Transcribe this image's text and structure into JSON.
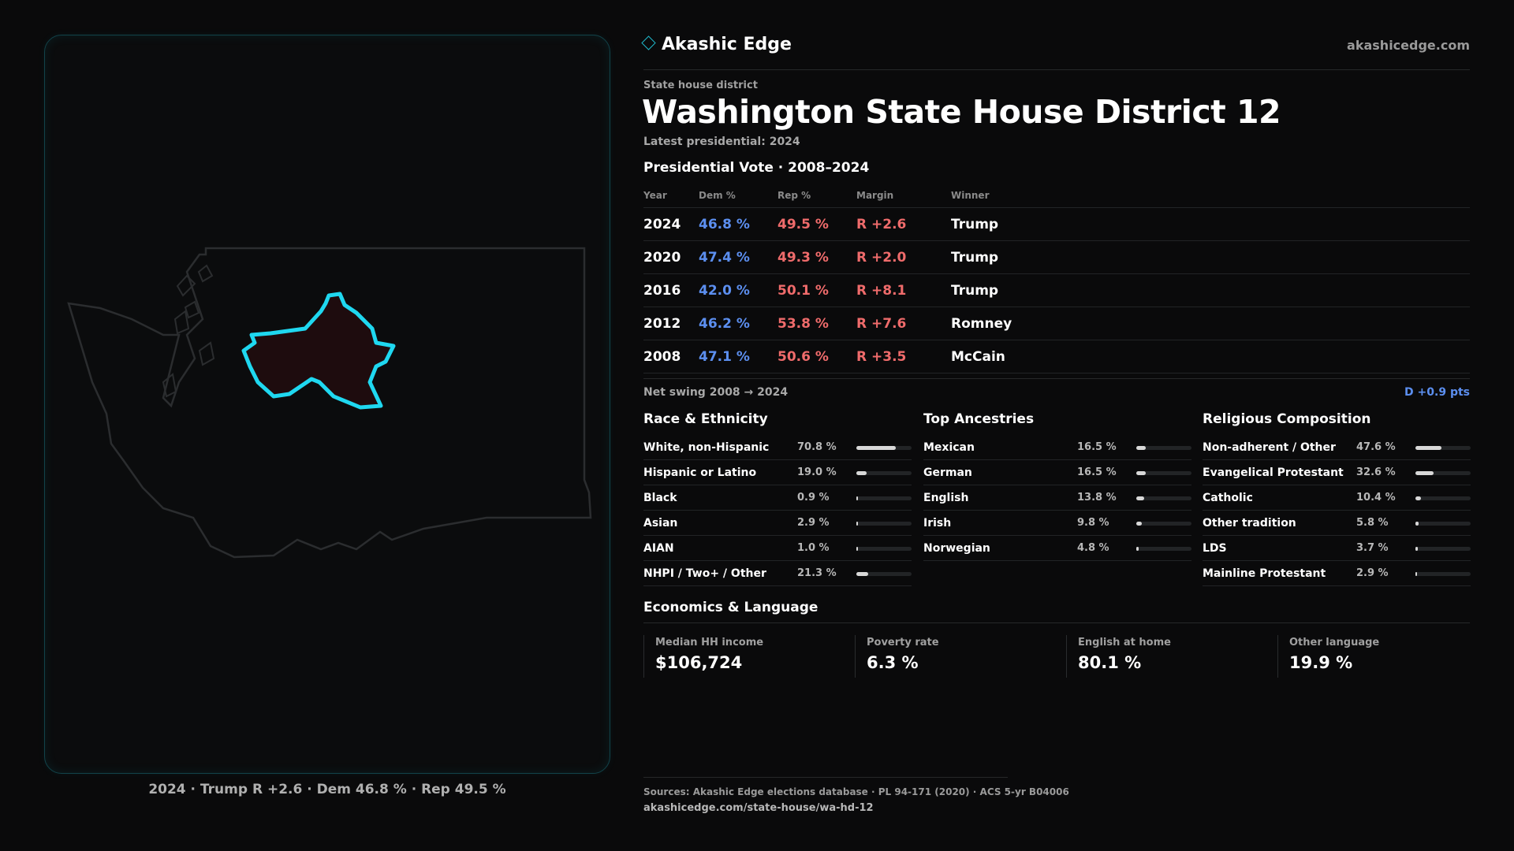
{
  "map": {
    "caption": "2024 · Trump R +2.6 · Dem 46.8 % · Rep 49.5 %"
  },
  "header": {
    "brand": "Akashic Edge",
    "site": "akashicedge.com",
    "eyebrow": "State house district",
    "title": "Washington State House District 12",
    "latest": "Latest presidential: 2024"
  },
  "presidential": {
    "section_title": "Presidential Vote · 2008–2024",
    "columns": [
      "Year",
      "Dem %",
      "Rep %",
      "Margin",
      "Winner"
    ],
    "rows": [
      {
        "year": "2024",
        "dem": "46.8 %",
        "rep": "49.5 %",
        "margin": "R +2.6",
        "winner": "Trump"
      },
      {
        "year": "2020",
        "dem": "47.4 %",
        "rep": "49.3 %",
        "margin": "R +2.0",
        "winner": "Trump"
      },
      {
        "year": "2016",
        "dem": "42.0 %",
        "rep": "50.1 %",
        "margin": "R +8.1",
        "winner": "Trump"
      },
      {
        "year": "2012",
        "dem": "46.2 %",
        "rep": "53.8 %",
        "margin": "R +7.6",
        "winner": "Romney"
      },
      {
        "year": "2008",
        "dem": "47.1 %",
        "rep": "50.6 %",
        "margin": "R +3.5",
        "winner": "McCain"
      }
    ],
    "swing_label": "Net swing 2008 → 2024",
    "swing_value": "D +0.9 pts"
  },
  "race": {
    "title": "Race & Ethnicity",
    "items": [
      {
        "label": "White, non-Hispanic",
        "pct": "70.8 %",
        "value": 70.8
      },
      {
        "label": "Hispanic or Latino",
        "pct": "19.0 %",
        "value": 19.0
      },
      {
        "label": "Black",
        "pct": "0.9 %",
        "value": 0.9
      },
      {
        "label": "Asian",
        "pct": "2.9 %",
        "value": 2.9
      },
      {
        "label": "AIAN",
        "pct": "1.0 %",
        "value": 1.0
      },
      {
        "label": "NHPI / Two+ / Other",
        "pct": "21.3 %",
        "value": 21.3
      }
    ]
  },
  "ancestry": {
    "title": "Top Ancestries",
    "items": [
      {
        "label": "Mexican",
        "pct": "16.5 %",
        "value": 16.5
      },
      {
        "label": "German",
        "pct": "16.5 %",
        "value": 16.5
      },
      {
        "label": "English",
        "pct": "13.8 %",
        "value": 13.8
      },
      {
        "label": "Irish",
        "pct": "9.8 %",
        "value": 9.8
      },
      {
        "label": "Norwegian",
        "pct": "4.8 %",
        "value": 4.8
      }
    ]
  },
  "religion": {
    "title": "Religious Composition",
    "items": [
      {
        "label": "Non-adherent / Other",
        "pct": "47.6 %",
        "value": 47.6
      },
      {
        "label": "Evangelical Protestant",
        "pct": "32.6 %",
        "value": 32.6
      },
      {
        "label": "Catholic",
        "pct": "10.4 %",
        "value": 10.4
      },
      {
        "label": "Other tradition",
        "pct": "5.8 %",
        "value": 5.8
      },
      {
        "label": "LDS",
        "pct": "3.7 %",
        "value": 3.7
      },
      {
        "label": "Mainline Protestant",
        "pct": "2.9 %",
        "value": 2.9
      }
    ]
  },
  "economics": {
    "title": "Economics & Language",
    "cells": [
      {
        "label": "Median HH income",
        "value": "$106,724"
      },
      {
        "label": "Poverty rate",
        "value": "6.3 %"
      },
      {
        "label": "English at home",
        "value": "80.1 %"
      },
      {
        "label": "Other language",
        "value": "19.9 %"
      }
    ]
  },
  "footer": {
    "sources": "Sources: Akashic Edge elections database · PL 94-171 (2020) · ACS 5-yr B04006",
    "url": "akashicedge.com/state-house/wa-hd-12"
  },
  "colors": {
    "accent": "#1fb6c8",
    "dem": "#5c8ff0",
    "rep": "#ef6b6b",
    "district_outline": "#1fd8f0",
    "district_fill": "#1e0c0e"
  }
}
